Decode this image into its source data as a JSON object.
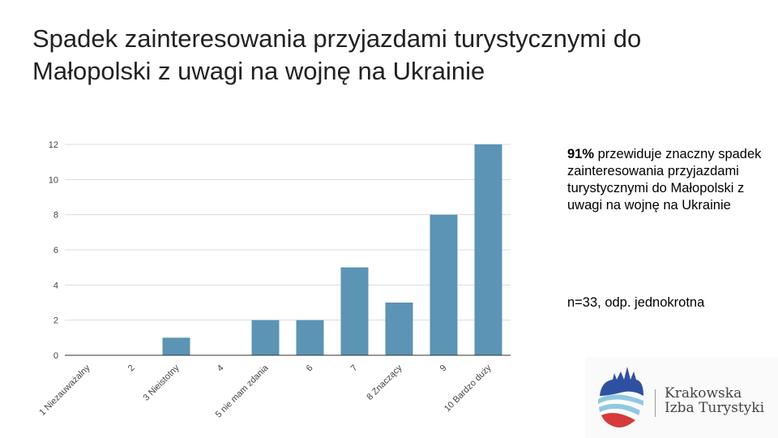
{
  "title": "Spadek zainteresowania przyjazdami turystycznymi do Małopolski z uwagi na wojnę na Ukrainie",
  "note": {
    "bold": "91%",
    "text": " przewiduje znaczny spadek zainteresowania przyjazdami turystycznymi do Małopolski z uwagi na wojnę na Ukrainie"
  },
  "sample": "n=33, odp. jednokrotna",
  "logo": {
    "line1": "Krakowska",
    "line2": "Izba Turystyki"
  },
  "chart_data": {
    "type": "bar",
    "title": "",
    "xlabel": "",
    "ylabel": "",
    "categories": [
      "1 Niezauważalny",
      "2",
      "3 Nieistotny",
      "4",
      "5 nie mam zdania",
      "6",
      "7",
      "8 Znaczący",
      "9",
      "10 Bardzo duży"
    ],
    "values": [
      0,
      0,
      1,
      0,
      2,
      2,
      5,
      3,
      8,
      12
    ],
    "ylim": [
      0,
      12
    ],
    "yticks": [
      0,
      2,
      4,
      6,
      8,
      10,
      12
    ],
    "grid": true,
    "color": "#5b94b4"
  }
}
